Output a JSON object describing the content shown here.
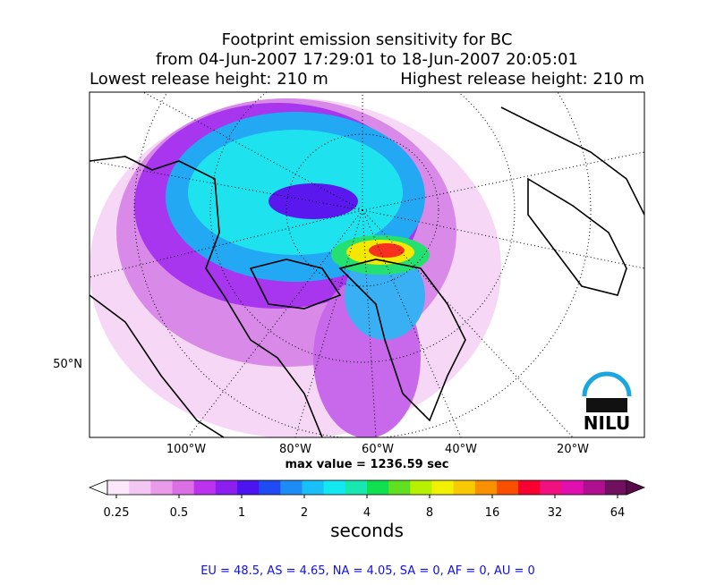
{
  "title": {
    "line1": "Footprint emission sensitivity for BC",
    "line2": "from 04-Jun-2007 17:29:01 to 18-Jun-2007 20:05:01",
    "lowest": "Lowest release height: 210 m",
    "highest": "Highest release height: 210 m"
  },
  "map": {
    "lon_labels": [
      "100°W",
      "80°W",
      "60°W",
      "40°W",
      "20°W"
    ],
    "lat_labels": [
      "50°N"
    ],
    "max_value": "max value = 1236.59 sec",
    "logo": "NILU"
  },
  "colorbar": {
    "ticks": [
      "0.25",
      "0.5",
      "1",
      "2",
      "4",
      "8",
      "16",
      "32",
      "64"
    ],
    "label": "seconds",
    "colors": [
      "#fbe8fb",
      "#f3c6f3",
      "#e99be9",
      "#dc6fe6",
      "#bb33ee",
      "#8a1ff0",
      "#4b14f0",
      "#1e4cf2",
      "#1e8cf6",
      "#19c0f8",
      "#13e8f0",
      "#18e8b0",
      "#10e050",
      "#60e020",
      "#b8f000",
      "#f0f000",
      "#f8c800",
      "#f89000",
      "#f85000",
      "#f80030",
      "#f01080",
      "#e010b0",
      "#b0108f",
      "#70105f"
    ]
  },
  "footer": "EU = 48.5,  AS = 4.65,  NA = 4.05,  SA = 0,  AF = 0,  AU = 0"
}
